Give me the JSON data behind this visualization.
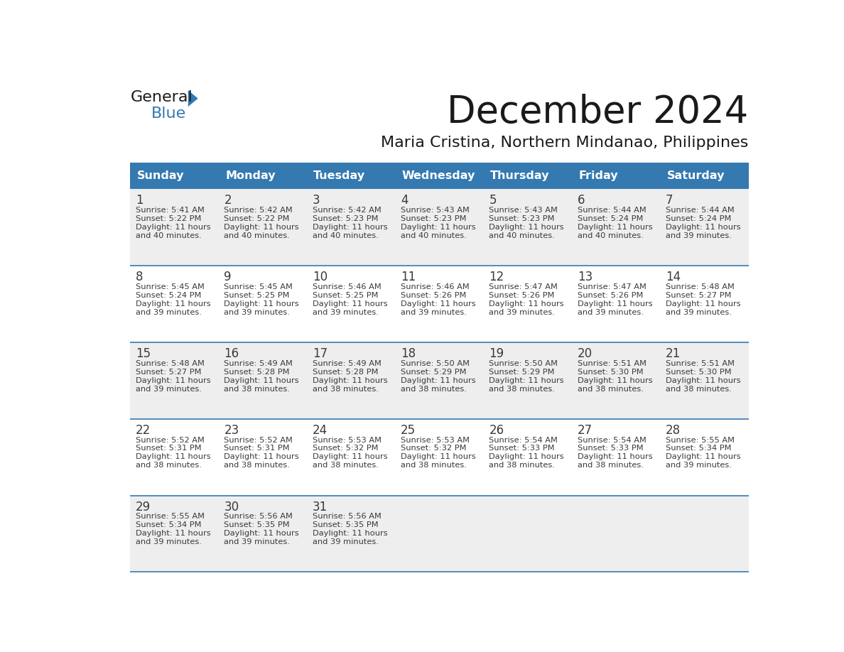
{
  "title": "December 2024",
  "subtitle": "Maria Cristina, Northern Mindanao, Philippines",
  "days_of_week": [
    "Sunday",
    "Monday",
    "Tuesday",
    "Wednesday",
    "Thursday",
    "Friday",
    "Saturday"
  ],
  "header_bg": "#3579B1",
  "header_text": "#FFFFFF",
  "row_bg_odd": "#EEEEEE",
  "row_bg_even": "#FFFFFF",
  "cell_border": "#3579B1",
  "day_text_color": "#3A3A3A",
  "info_text_color": "#3A3A3A",
  "title_color": "#1A1A1A",
  "subtitle_color": "#1A1A1A",
  "calendar_data": [
    [
      {
        "day": 1,
        "sunrise": "5:41 AM",
        "sunset": "5:22 PM",
        "daylight": "11 hours and 40 minutes."
      },
      {
        "day": 2,
        "sunrise": "5:42 AM",
        "sunset": "5:22 PM",
        "daylight": "11 hours and 40 minutes."
      },
      {
        "day": 3,
        "sunrise": "5:42 AM",
        "sunset": "5:23 PM",
        "daylight": "11 hours and 40 minutes."
      },
      {
        "day": 4,
        "sunrise": "5:43 AM",
        "sunset": "5:23 PM",
        "daylight": "11 hours and 40 minutes."
      },
      {
        "day": 5,
        "sunrise": "5:43 AM",
        "sunset": "5:23 PM",
        "daylight": "11 hours and 40 minutes."
      },
      {
        "day": 6,
        "sunrise": "5:44 AM",
        "sunset": "5:24 PM",
        "daylight": "11 hours and 40 minutes."
      },
      {
        "day": 7,
        "sunrise": "5:44 AM",
        "sunset": "5:24 PM",
        "daylight": "11 hours and 39 minutes."
      }
    ],
    [
      {
        "day": 8,
        "sunrise": "5:45 AM",
        "sunset": "5:24 PM",
        "daylight": "11 hours and 39 minutes."
      },
      {
        "day": 9,
        "sunrise": "5:45 AM",
        "sunset": "5:25 PM",
        "daylight": "11 hours and 39 minutes."
      },
      {
        "day": 10,
        "sunrise": "5:46 AM",
        "sunset": "5:25 PM",
        "daylight": "11 hours and 39 minutes."
      },
      {
        "day": 11,
        "sunrise": "5:46 AM",
        "sunset": "5:26 PM",
        "daylight": "11 hours and 39 minutes."
      },
      {
        "day": 12,
        "sunrise": "5:47 AM",
        "sunset": "5:26 PM",
        "daylight": "11 hours and 39 minutes."
      },
      {
        "day": 13,
        "sunrise": "5:47 AM",
        "sunset": "5:26 PM",
        "daylight": "11 hours and 39 minutes."
      },
      {
        "day": 14,
        "sunrise": "5:48 AM",
        "sunset": "5:27 PM",
        "daylight": "11 hours and 39 minutes."
      }
    ],
    [
      {
        "day": 15,
        "sunrise": "5:48 AM",
        "sunset": "5:27 PM",
        "daylight": "11 hours and 39 minutes."
      },
      {
        "day": 16,
        "sunrise": "5:49 AM",
        "sunset": "5:28 PM",
        "daylight": "11 hours and 38 minutes."
      },
      {
        "day": 17,
        "sunrise": "5:49 AM",
        "sunset": "5:28 PM",
        "daylight": "11 hours and 38 minutes."
      },
      {
        "day": 18,
        "sunrise": "5:50 AM",
        "sunset": "5:29 PM",
        "daylight": "11 hours and 38 minutes."
      },
      {
        "day": 19,
        "sunrise": "5:50 AM",
        "sunset": "5:29 PM",
        "daylight": "11 hours and 38 minutes."
      },
      {
        "day": 20,
        "sunrise": "5:51 AM",
        "sunset": "5:30 PM",
        "daylight": "11 hours and 38 minutes."
      },
      {
        "day": 21,
        "sunrise": "5:51 AM",
        "sunset": "5:30 PM",
        "daylight": "11 hours and 38 minutes."
      }
    ],
    [
      {
        "day": 22,
        "sunrise": "5:52 AM",
        "sunset": "5:31 PM",
        "daylight": "11 hours and 38 minutes."
      },
      {
        "day": 23,
        "sunrise": "5:52 AM",
        "sunset": "5:31 PM",
        "daylight": "11 hours and 38 minutes."
      },
      {
        "day": 24,
        "sunrise": "5:53 AM",
        "sunset": "5:32 PM",
        "daylight": "11 hours and 38 minutes."
      },
      {
        "day": 25,
        "sunrise": "5:53 AM",
        "sunset": "5:32 PM",
        "daylight": "11 hours and 38 minutes."
      },
      {
        "day": 26,
        "sunrise": "5:54 AM",
        "sunset": "5:33 PM",
        "daylight": "11 hours and 38 minutes."
      },
      {
        "day": 27,
        "sunrise": "5:54 AM",
        "sunset": "5:33 PM",
        "daylight": "11 hours and 38 minutes."
      },
      {
        "day": 28,
        "sunrise": "5:55 AM",
        "sunset": "5:34 PM",
        "daylight": "11 hours and 39 minutes."
      }
    ],
    [
      {
        "day": 29,
        "sunrise": "5:55 AM",
        "sunset": "5:34 PM",
        "daylight": "11 hours and 39 minutes."
      },
      {
        "day": 30,
        "sunrise": "5:56 AM",
        "sunset": "5:35 PM",
        "daylight": "11 hours and 39 minutes."
      },
      {
        "day": 31,
        "sunrise": "5:56 AM",
        "sunset": "5:35 PM",
        "daylight": "11 hours and 39 minutes."
      },
      null,
      null,
      null,
      null
    ]
  ],
  "logo_general_color": "#1A1A1A",
  "logo_blue_color": "#3579B1"
}
